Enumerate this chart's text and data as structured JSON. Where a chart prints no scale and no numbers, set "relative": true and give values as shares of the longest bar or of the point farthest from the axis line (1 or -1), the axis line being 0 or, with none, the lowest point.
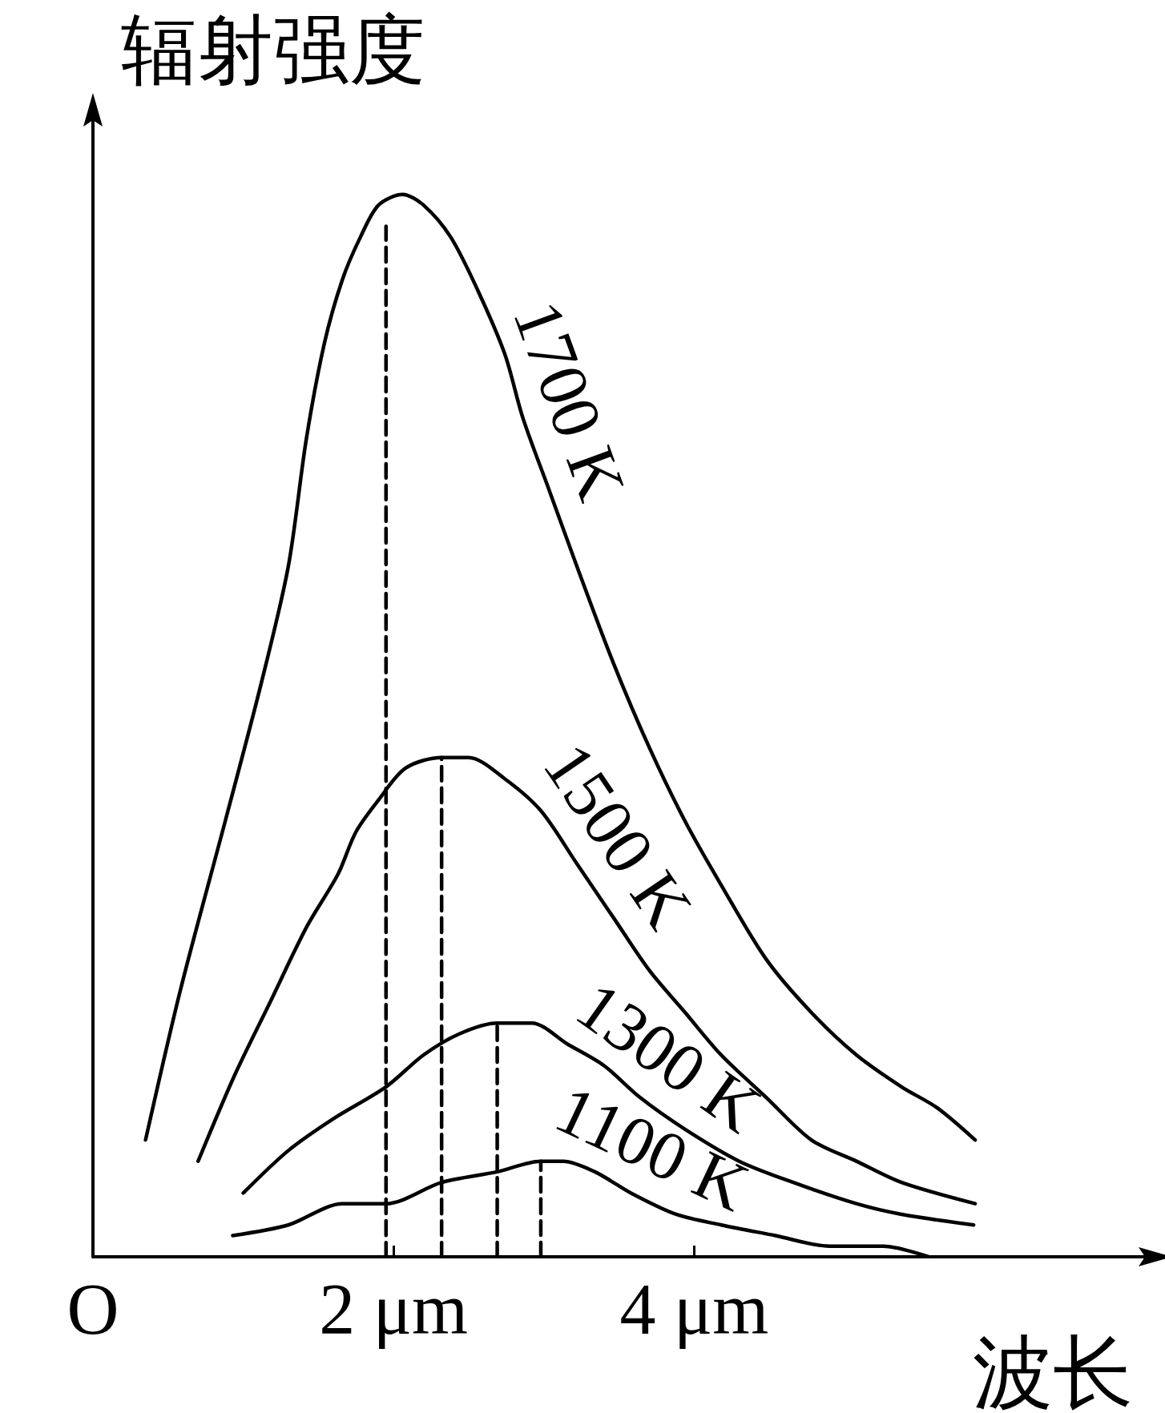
{
  "chart_data": {
    "type": "line",
    "relative": true,
    "xlabel": "波长",
    "ylabel": "辐射强度",
    "xlim": [
      0,
      7.0
    ],
    "xticks": [
      {
        "value": 0,
        "label": "O"
      },
      {
        "value": 2,
        "label": "2 μm"
      },
      {
        "value": 4,
        "label": "4 μm"
      }
    ],
    "marker": "none",
    "line_style": "solid",
    "series": [
      {
        "name": "1700 K",
        "color": "#000000",
        "x": [
          0.35,
          0.58,
          0.88,
          1.12,
          1.3,
          1.42,
          1.54,
          1.66,
          1.78,
          1.9,
          2.06,
          2.2,
          2.38,
          2.56,
          2.74,
          2.86,
          3.04,
          3.22,
          3.46,
          3.7,
          3.94,
          4.18,
          4.48,
          4.78,
          5.08,
          5.38,
          5.62,
          5.87
        ],
        "values": [
          0.11,
          0.25,
          0.41,
          0.54,
          0.65,
          0.77,
          0.86,
          0.92,
          0.96,
          0.99,
          1.0,
          0.99,
          0.96,
          0.91,
          0.85,
          0.79,
          0.72,
          0.65,
          0.56,
          0.48,
          0.41,
          0.35,
          0.28,
          0.23,
          0.19,
          0.16,
          0.14,
          0.11
        ]
      },
      {
        "name": "1500 K",
        "color": "#000000",
        "x": [
          0.7,
          0.94,
          1.18,
          1.42,
          1.63,
          1.75,
          1.9,
          2.08,
          2.32,
          2.5,
          2.74,
          2.98,
          3.22,
          3.46,
          3.7,
          3.94,
          4.18,
          4.48,
          4.78,
          5.08,
          5.38,
          5.87
        ],
        "values": [
          0.09,
          0.17,
          0.24,
          0.31,
          0.36,
          0.4,
          0.43,
          0.46,
          0.47,
          0.47,
          0.45,
          0.42,
          0.37,
          0.32,
          0.27,
          0.23,
          0.19,
          0.15,
          0.11,
          0.09,
          0.07,
          0.05
        ]
      },
      {
        "name": "1300 K",
        "color": "#000000",
        "x": [
          1.0,
          1.3,
          1.6,
          1.95,
          2.2,
          2.44,
          2.69,
          2.92,
          3.16,
          3.4,
          3.64,
          3.94,
          4.3,
          4.66,
          5.08,
          5.38,
          5.86
        ],
        "values": [
          0.06,
          0.1,
          0.13,
          0.16,
          0.19,
          0.21,
          0.22,
          0.22,
          0.2,
          0.18,
          0.15,
          0.12,
          0.09,
          0.07,
          0.05,
          0.04,
          0.03
        ]
      },
      {
        "name": "1100 K",
        "color": "#000000",
        "x": [
          0.93,
          1.3,
          1.66,
          1.95,
          2.32,
          2.69,
          2.98,
          3.13,
          3.34,
          3.58,
          3.88,
          4.18,
          4.54,
          4.9,
          5.26,
          5.56
        ],
        "values": [
          0.02,
          0.03,
          0.05,
          0.05,
          0.07,
          0.08,
          0.09,
          0.09,
          0.08,
          0.06,
          0.04,
          0.03,
          0.02,
          0.01,
          0.01,
          0.0
        ]
      },
      {
        "color": "#000000",
        "line_style": "dashed",
        "x": [
          1.95,
          1.95
        ],
        "values": [
          0,
          0.97
        ]
      },
      {
        "color": "#000000",
        "line_style": "dashed",
        "x": [
          2.32,
          2.32
        ],
        "values": [
          0,
          0.47
        ]
      },
      {
        "color": "#000000",
        "line_style": "dashed",
        "x": [
          2.69,
          2.69
        ],
        "values": [
          0,
          0.22
        ]
      },
      {
        "color": "#000000",
        "line_style": "dashed",
        "x": [
          2.98,
          2.98
        ],
        "values": [
          0,
          0.09
        ]
      }
    ]
  }
}
